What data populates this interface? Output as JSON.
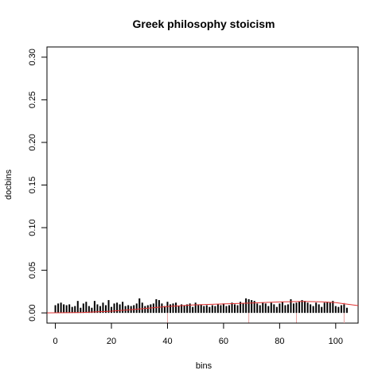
{
  "chart_data": {
    "type": "bar",
    "title": "Greek philosophy stoicism",
    "xlabel": "bins",
    "ylabel": "docbins",
    "xlim": [
      -3,
      108
    ],
    "ylim": [
      -0.012,
      0.312
    ],
    "xticks": [
      0,
      20,
      40,
      60,
      80,
      100
    ],
    "yticks": [
      0.0,
      0.05,
      0.1,
      0.15,
      0.2,
      0.25,
      0.3
    ],
    "ytick_labels": [
      "0.00",
      "0.05",
      "0.10",
      "0.15",
      "0.20",
      "0.25",
      "0.30"
    ],
    "x_start": 0,
    "values": [
      0.009,
      0.011,
      0.012,
      0.01,
      0.009,
      0.01,
      0.007,
      0.008,
      0.014,
      0.006,
      0.011,
      0.013,
      0.008,
      0.006,
      0.014,
      0.01,
      0.008,
      0.012,
      0.009,
      0.015,
      0.007,
      0.011,
      0.012,
      0.01,
      0.013,
      0.008,
      0.009,
      0.008,
      0.009,
      0.011,
      0.017,
      0.012,
      0.008,
      0.009,
      0.01,
      0.011,
      0.016,
      0.015,
      0.011,
      0.008,
      0.013,
      0.01,
      0.011,
      0.012,
      0.008,
      0.01,
      0.009,
      0.01,
      0.011,
      0.007,
      0.012,
      0.009,
      0.01,
      0.008,
      0.009,
      0.007,
      0.009,
      0.008,
      0.01,
      0.009,
      0.011,
      0.008,
      0.009,
      0.012,
      0.01,
      0.009,
      0.013,
      0.011,
      0.017,
      0.016,
      0.015,
      0.014,
      0.011,
      0.009,
      0.012,
      0.011,
      0.008,
      0.012,
      0.01,
      0.007,
      0.011,
      0.013,
      0.009,
      0.01,
      0.016,
      0.011,
      0.012,
      0.013,
      0.015,
      0.014,
      0.012,
      0.01,
      0.008,
      0.012,
      0.01,
      0.007,
      0.012,
      0.013,
      0.012,
      0.014,
      0.008,
      0.007,
      0.009,
      0.01,
      0.006
    ],
    "bar_color": "#000000",
    "fit_line": {
      "color": "#e03030",
      "x": [
        -3,
        10,
        20,
        30,
        40,
        50,
        60,
        70,
        80,
        88,
        95,
        100,
        108
      ],
      "y": [
        0.0,
        0.0005,
        0.002,
        0.0045,
        0.0075,
        0.0095,
        0.0105,
        0.0115,
        0.0128,
        0.0135,
        0.013,
        0.012,
        0.0085
      ]
    },
    "vertical_markers": {
      "color": "#e8a0a0",
      "x": [
        40,
        69,
        86,
        103
      ]
    },
    "grid": false,
    "legend": "none"
  }
}
